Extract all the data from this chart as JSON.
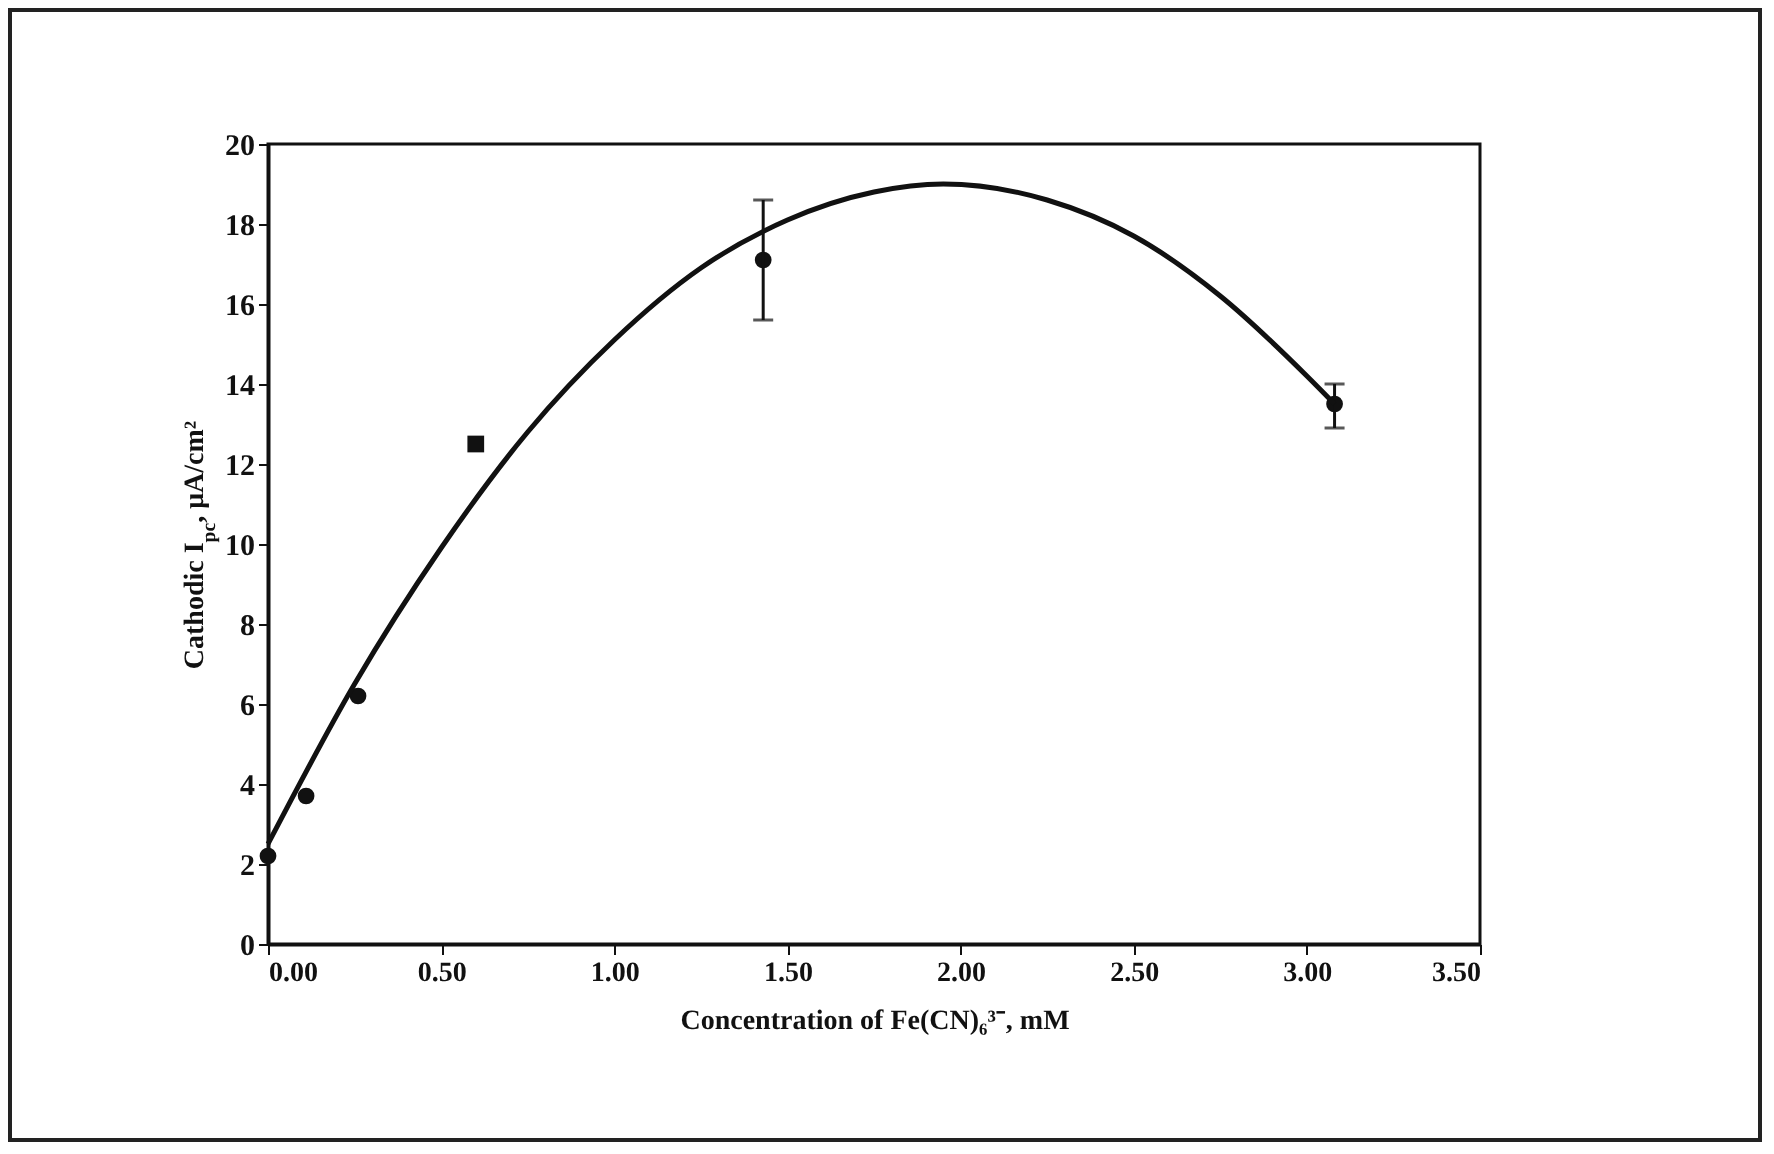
{
  "chart_data": {
    "type": "scatter",
    "xlabel": "Concentration of Fe(CN)₆³⁻, mM",
    "ylabel": "Cathodic I$_{pc}$, μA/cm²",
    "xlim": [
      0,
      3.5
    ],
    "ylim": [
      0,
      20
    ],
    "xticks": [
      {
        "value": 0,
        "label": "0.00"
      },
      {
        "value": 0.5,
        "label": "0.50"
      },
      {
        "value": 1,
        "label": "1.00"
      },
      {
        "value": 1.5,
        "label": "1.50"
      },
      {
        "value": 2,
        "label": "2.00"
      },
      {
        "value": 2.5,
        "label": "2.50"
      },
      {
        "value": 3,
        "label": "3.00"
      },
      {
        "value": 3.5,
        "label": "3.50"
      }
    ],
    "yticks": [
      0,
      2,
      4,
      6,
      8,
      10,
      12,
      14,
      16,
      18,
      20
    ],
    "grid": false,
    "series": [
      {
        "color": "#111111",
        "marker": "circle",
        "x": [
          0,
          0.11,
          0.26,
          1.43,
          3.08
        ],
        "values": [
          2.2,
          3.7,
          6.2,
          17.1,
          13.5
        ],
        "errors": [
          null,
          null,
          null,
          [
            15.6,
            18.6
          ],
          [
            12.9,
            14.0
          ]
        ]
      },
      {
        "color": "#111111",
        "marker": "square",
        "x": [
          0.6
        ],
        "values": [
          12.5
        ]
      },
      {
        "type": "line",
        "color": "#111111",
        "marker": "none",
        "line_style": "solid",
        "x": [
          0,
          0.25,
          0.5,
          0.75,
          1,
          1.25,
          1.5,
          1.75,
          1.95,
          2.25,
          2.5,
          2.75,
          3,
          3.08
        ],
        "values": [
          2.5,
          6.5,
          9.9,
          12.8,
          15.1,
          16.9,
          18.1,
          18.8,
          19,
          18.6,
          17.7,
          16.2,
          14.2,
          13.5
        ]
      }
    ]
  }
}
